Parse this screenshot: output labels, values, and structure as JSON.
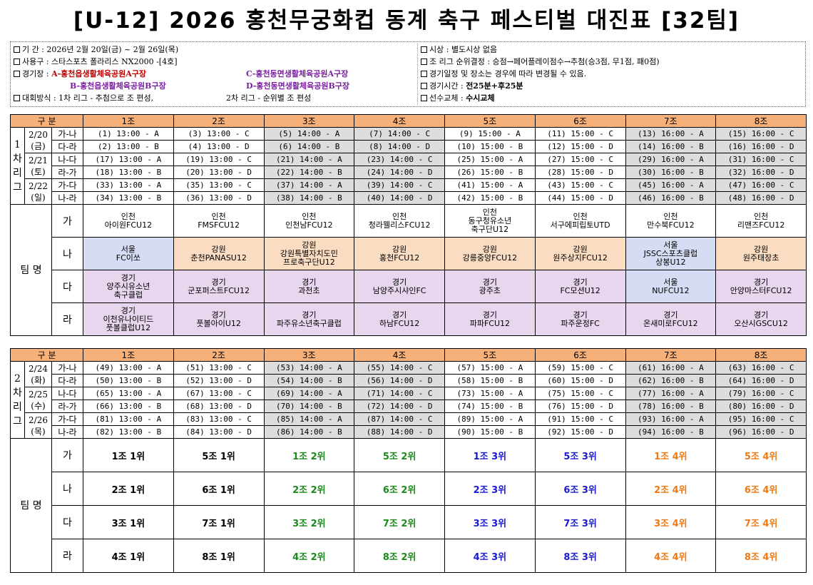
{
  "title": "[U-12] 2026 홍천무궁화컵 동계 축구 페스티벌 대진표 [32팀]",
  "info_left": {
    "period": "기 간 : 2026년 2월 20일(금) ~ 2월 26일(목)",
    "ball": "사용구 : 스타스포츠 폴라리스 NX2000 -[4호]",
    "venue_prefix": "경기장 : ",
    "venue_a": "A-홍천읍생활체육공원A구장",
    "venue_b": "B-홍천읍생활체육공원B구장",
    "venue_c": "C-홍천동면생활체육공원A구장",
    "venue_d": "D-홍천동면생활체육공원B구장",
    "format_a": "대회방식 : 1차 리그 - 추첨으로 조 편성,",
    "format_b": "2차 리그 - 순위별 조 편성"
  },
  "info_right": {
    "award": "시상 : 별도시상 없음",
    "ranking": "조 리그 순위결정 : 승점→페어플레이점수→추첨(승3점, 무1점, 패0점)",
    "notice": "경기일정 및 장소는 경우에 따라 변경될 수 있음.",
    "time_label": "경기시간 : ",
    "time_value": "전25분+후25분",
    "sub_label": "선수교체 : ",
    "sub_value": "수시교체"
  },
  "header": {
    "gubun": "구  분",
    "groups": [
      "1조",
      "2조",
      "3조",
      "4조",
      "5조",
      "6조",
      "7조",
      "8조"
    ]
  },
  "stage1": {
    "label": "1\n차\n리\n그",
    "days": [
      {
        "date": "2/20",
        "dow": "(금)"
      },
      {
        "date": "2/21",
        "dow": "(토)"
      },
      {
        "date": "2/22",
        "dow": "(일)"
      }
    ],
    "rows": [
      {
        "pair": "가-나",
        "cells": [
          "(1) 13:00 - A",
          "(3) 13:00 - C",
          "(5) 14:00 - A",
          "(7) 14:00 - C",
          "(9) 15:00 - A",
          "(11) 15:00 - C",
          "(13) 16:00 - A",
          "(15) 16:00 - C"
        ]
      },
      {
        "pair": "다-라",
        "cells": [
          "(2) 13:00 - B",
          "(4) 13:00 - D",
          "(6) 14:00 - B",
          "(8) 14:00 - D",
          "(10) 15:00 - B",
          "(12) 15:00 - D",
          "(14) 16:00 - B",
          "(16) 16:00 - D"
        ]
      },
      {
        "pair": "나-다",
        "cells": [
          "(17) 13:00 - A",
          "(19) 13:00 - C",
          "(21) 14:00 - A",
          "(23) 14:00 - C",
          "(25) 15:00 - A",
          "(27) 15:00 - C",
          "(29) 16:00 - A",
          "(31) 16:00 - C"
        ]
      },
      {
        "pair": "라-가",
        "cells": [
          "(18) 13:00 - B",
          "(20) 13:00 - D",
          "(22) 14:00 - B",
          "(24) 14:00 - D",
          "(26) 15:00 - B",
          "(28) 15:00 - D",
          "(30) 16:00 - B",
          "(32) 16:00 - D"
        ]
      },
      {
        "pair": "가-다",
        "cells": [
          "(33) 13:00 - A",
          "(35) 13:00 - C",
          "(37) 14:00 - A",
          "(39) 14:00 - C",
          "(41) 15:00 - A",
          "(43) 15:00 - C",
          "(45) 16:00 - A",
          "(47) 16:00 - C"
        ]
      },
      {
        "pair": "나-라",
        "cells": [
          "(34) 13:00 - B",
          "(36) 13:00 - D",
          "(38) 14:00 - B",
          "(40) 14:00 - D",
          "(42) 15:00 - B",
          "(44) 15:00 - D",
          "(46) 16:00 - B",
          "(48) 16:00 - D"
        ]
      }
    ],
    "team_label": "팀 명",
    "teams": [
      {
        "pool": "가",
        "cells": [
          {
            "l1": "인천",
            "l2": "아이원FCU12",
            "c": ""
          },
          {
            "l1": "인천",
            "l2": "FMSFCU12",
            "c": ""
          },
          {
            "l1": "인천",
            "l2": "인천남FCU12",
            "c": ""
          },
          {
            "l1": "인천",
            "l2": "청라웰리스FCU12",
            "c": ""
          },
          {
            "l1": "인천",
            "l2": "동구청유소년\n축구단U12",
            "c": ""
          },
          {
            "l1": "인천",
            "l2": "서구에피립토UTD",
            "c": ""
          },
          {
            "l1": "인천",
            "l2": "만수북FCU12",
            "c": ""
          },
          {
            "l1": "인천",
            "l2": "리맨즈FCU12",
            "c": ""
          }
        ]
      },
      {
        "pool": "나",
        "cells": [
          {
            "l1": "서울",
            "l2": "FC이쏘",
            "c": "blue"
          },
          {
            "l1": "강원",
            "l2": "춘천PANASU12",
            "c": "orange"
          },
          {
            "l1": "강원",
            "l2": "강원특별자치도민\n프로축구단U12",
            "c": "orange"
          },
          {
            "l1": "강원",
            "l2": "홍천FCU12",
            "c": "orange"
          },
          {
            "l1": "강원",
            "l2": "강릉중앙FCU12",
            "c": "orange"
          },
          {
            "l1": "강원",
            "l2": "원주상지FCU12",
            "c": "orange"
          },
          {
            "l1": "서울",
            "l2": "JSSC스포츠클럽\n상봉U12",
            "c": "blue"
          },
          {
            "l1": "강원",
            "l2": "원주태장초",
            "c": "orange"
          }
        ]
      },
      {
        "pool": "다",
        "cells": [
          {
            "l1": "경기",
            "l2": "양주시유소년\n축구클럽",
            "c": "purple"
          },
          {
            "l1": "경기",
            "l2": "군포퍼스트FCU12",
            "c": "purple"
          },
          {
            "l1": "경기",
            "l2": "과천초",
            "c": "purple"
          },
          {
            "l1": "경기",
            "l2": "남양주시샤인FC",
            "c": "purple"
          },
          {
            "l1": "경기",
            "l2": "광주초",
            "c": "purple"
          },
          {
            "l1": "경기",
            "l2": "FC모션U12",
            "c": "purple"
          },
          {
            "l1": "서울",
            "l2": "NUFCU12",
            "c": "blue"
          },
          {
            "l1": "경기",
            "l2": "안양마스터FCU12",
            "c": "purple"
          }
        ]
      },
      {
        "pool": "라",
        "cells": [
          {
            "l1": "경기",
            "l2": "이천유나이티드\n풋볼클럽U12",
            "c": "purple"
          },
          {
            "l1": "경기",
            "l2": "풋볼아이U12",
            "c": "purple"
          },
          {
            "l1": "경기",
            "l2": "파주유소년축구클럽",
            "c": "purple"
          },
          {
            "l1": "경기",
            "l2": "하남FCU12",
            "c": "purple"
          },
          {
            "l1": "경기",
            "l2": "파파FCU12",
            "c": "purple"
          },
          {
            "l1": "경기",
            "l2": "파주운정FC",
            "c": "purple"
          },
          {
            "l1": "경기",
            "l2": "온새미로FCU12",
            "c": "purple"
          },
          {
            "l1": "경기",
            "l2": "오산시GSCU12",
            "c": "purple"
          }
        ]
      }
    ]
  },
  "stage2": {
    "label": "2\n차\n리\n그",
    "days": [
      {
        "date": "2/24",
        "dow": "(화)"
      },
      {
        "date": "2/25",
        "dow": "(수)"
      },
      {
        "date": "2/26",
        "dow": "(목)"
      }
    ],
    "rows": [
      {
        "pair": "가-나",
        "cells": [
          "(49) 13:00 - A",
          "(51) 13:00 - C",
          "(53) 14:00 - A",
          "(55) 14:00 - C",
          "(57) 15:00 - A",
          "(59) 15:00 - C",
          "(61) 16:00 - A",
          "(63) 16:00 - C"
        ]
      },
      {
        "pair": "다-라",
        "cells": [
          "(50) 13:00 - B",
          "(52) 13:00 - D",
          "(54) 14:00 - B",
          "(56) 14:00 - D",
          "(58) 15:00 - B",
          "(60) 15:00 - D",
          "(62) 16:00 - B",
          "(64) 16:00 - D"
        ]
      },
      {
        "pair": "나-다",
        "cells": [
          "(65) 13:00 - A",
          "(67) 13:00 - C",
          "(69) 14:00 - A",
          "(71) 14:00 - C",
          "(73) 15:00 - A",
          "(75) 15:00 - C",
          "(77) 16:00 - A",
          "(79) 16:00 - C"
        ]
      },
      {
        "pair": "라-가",
        "cells": [
          "(66) 13:00 - B",
          "(68) 13:00 - D",
          "(70) 14:00 - B",
          "(72) 14:00 - D",
          "(74) 15:00 - B",
          "(76) 15:00 - D",
          "(78) 16:00 - B",
          "(80) 16:00 - D"
        ]
      },
      {
        "pair": "가-다",
        "cells": [
          "(81) 13:00 - A",
          "(83) 13:00 - C",
          "(85) 14:00 - A",
          "(87) 14:00 - C",
          "(89) 15:00 - A",
          "(91) 15:00 - C",
          "(93) 16:00 - A",
          "(95) 16:00 - C"
        ]
      },
      {
        "pair": "나-라",
        "cells": [
          "(82) 13:00 - B",
          "(84) 13:00 - D",
          "(86) 14:00 - B",
          "(88) 14:00 - D",
          "(90) 15:00 - B",
          "(92) 15:00 - D",
          "(94) 16:00 - B",
          "(96) 16:00 - D"
        ]
      }
    ],
    "team_label": "팀 명",
    "slots": [
      {
        "pool": "가",
        "cells": [
          "1조 1위",
          "5조 1위",
          "1조 2위",
          "5조 2위",
          "1조 3위",
          "5조 3위",
          "1조 4위",
          "5조 4위"
        ]
      },
      {
        "pool": "나",
        "cells": [
          "2조 1위",
          "6조 1위",
          "2조 2위",
          "6조 2위",
          "2조 3위",
          "6조 3위",
          "2조 4위",
          "6조 4위"
        ]
      },
      {
        "pool": "다",
        "cells": [
          "3조 1위",
          "7조 1위",
          "3조 2위",
          "7조 2위",
          "3조 3위",
          "7조 3위",
          "3조 4위",
          "7조 4위"
        ]
      },
      {
        "pool": "라",
        "cells": [
          "4조 1위",
          "8조 1위",
          "4조 2위",
          "8조 2위",
          "4조 3위",
          "8조 3위",
          "4조 4위",
          "8조 4위"
        ]
      }
    ],
    "slot_colors": [
      "black",
      "black",
      "green",
      "green",
      "blue",
      "blue",
      "orange",
      "orange"
    ]
  }
}
